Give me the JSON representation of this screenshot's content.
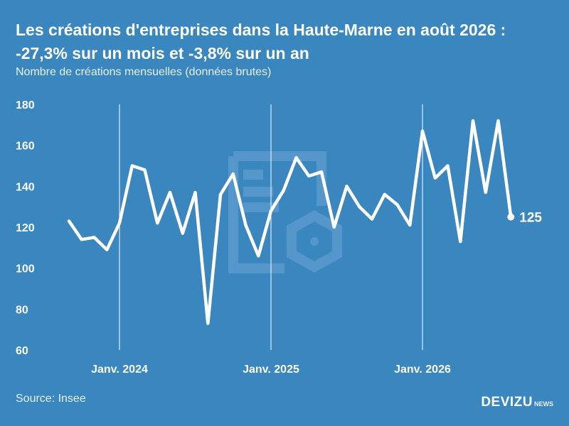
{
  "header": {
    "title": "Les créations d'entreprises dans la Haute-Marne en août 2026 : -27,3% sur un mois et -3,8% sur un an",
    "subtitle": "Nombre de créations mensuelles (données brutes)"
  },
  "footer": {
    "source": "Source: Insee",
    "brand": "DEVIZU",
    "brand_sub": "NEWS"
  },
  "colors": {
    "background": "#3a86bf",
    "line": "#ffffff",
    "watermark": "#5a9bce"
  },
  "chart_data": {
    "type": "line",
    "x": [
      "2023-09",
      "2023-10",
      "2023-11",
      "2023-12",
      "2024-01",
      "2024-02",
      "2024-03",
      "2024-04",
      "2024-05",
      "2024-06",
      "2024-07",
      "2024-08",
      "2024-09",
      "2024-10",
      "2024-11",
      "2024-12",
      "2025-01",
      "2025-02",
      "2025-03",
      "2025-04",
      "2025-05",
      "2025-06",
      "2025-07",
      "2025-08",
      "2025-09",
      "2025-10",
      "2025-11",
      "2025-12",
      "2026-01",
      "2026-02",
      "2026-03",
      "2026-04",
      "2026-05",
      "2026-06",
      "2026-07",
      "2026-08"
    ],
    "series": [
      {
        "values": [
          123,
          114,
          115,
          109,
          122,
          150,
          148,
          122,
          137,
          117,
          137,
          73,
          136,
          146,
          121,
          106,
          128,
          138,
          154,
          145,
          147,
          120,
          140,
          130,
          124,
          136,
          131,
          121,
          167,
          144,
          150,
          113,
          172,
          137,
          172,
          125
        ]
      }
    ],
    "ylim": [
      60,
      180
    ],
    "yticks": [
      60,
      80,
      100,
      120,
      140,
      160,
      180
    ],
    "xticks": [
      {
        "x": "2024-01",
        "label": "Janv. 2024"
      },
      {
        "x": "2025-01",
        "label": "Janv. 2025"
      },
      {
        "x": "2026-01",
        "label": "Janv. 2026"
      }
    ],
    "end_label": "125",
    "grid": "vertical lines at year starts",
    "xlabel": "",
    "ylabel": ""
  }
}
